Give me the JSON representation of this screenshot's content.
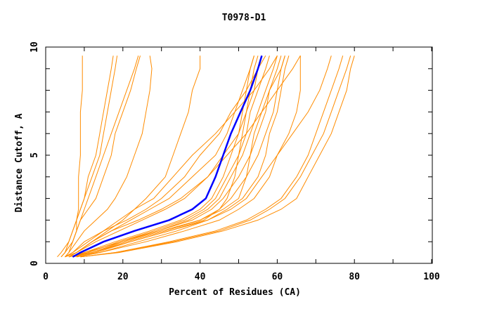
{
  "chart_data": {
    "type": "line",
    "title": "T0978-D1",
    "xlabel": "Percent of Residues (CA)",
    "ylabel": "Distance Cutoff, A",
    "xlim": [
      0,
      100
    ],
    "ylim": [
      0,
      10
    ],
    "xticks": [
      "0",
      "20",
      "40",
      "60",
      "80",
      "100"
    ],
    "yticks": [
      "0",
      "5",
      "10"
    ],
    "grid": false,
    "colors": {
      "models": "#ff8c00",
      "highlight": "#0000ff",
      "axes": "#000000"
    },
    "y_cutoffs": [
      0.3,
      0.5,
      1,
      1.5,
      2,
      2.5,
      3,
      4,
      5,
      6,
      7,
      8,
      9,
      9.6
    ],
    "highlight_series": {
      "x": [
        7,
        9,
        15,
        23,
        32,
        38,
        41.5,
        44,
        46,
        48,
        50.5,
        53,
        55,
        56
      ]
    },
    "series": [
      {
        "x": [
          4,
          5,
          7,
          8,
          8,
          8.5,
          8.5,
          8.5,
          9,
          9,
          9,
          9.5,
          9.5,
          9.5
        ]
      },
      {
        "x": [
          3,
          4,
          6,
          7,
          8,
          9,
          10,
          11,
          13,
          14,
          15,
          16,
          17,
          17.5
        ]
      },
      {
        "x": [
          4,
          5,
          6,
          7,
          8,
          9,
          10,
          12,
          14,
          15,
          16,
          17,
          18,
          18.5
        ]
      },
      {
        "x": [
          4,
          5,
          7,
          8,
          9,
          11,
          13,
          15,
          17,
          18,
          20,
          22,
          23.5,
          24.5
        ]
      },
      {
        "x": [
          5,
          6,
          7,
          8,
          9,
          10,
          11,
          13,
          15,
          17,
          19,
          21,
          23,
          24
        ]
      },
      {
        "x": [
          5,
          6,
          8,
          10,
          13,
          16,
          18,
          21,
          23,
          25,
          26,
          27,
          27.5,
          27
        ]
      },
      {
        "x": [
          6,
          8,
          12,
          16,
          20,
          23,
          26,
          31,
          33,
          35,
          37,
          38,
          40,
          40
        ]
      },
      {
        "x": [
          6,
          8,
          12,
          17,
          24,
          30,
          35,
          42,
          46,
          50,
          51,
          52,
          53,
          54
        ]
      },
      {
        "x": [
          6,
          10,
          18,
          27,
          35,
          40,
          43,
          46,
          48,
          50,
          52,
          54,
          55,
          57
        ]
      },
      {
        "x": [
          7,
          11,
          19,
          28,
          36,
          41,
          44,
          47,
          50,
          52,
          53,
          55,
          57,
          58
        ]
      },
      {
        "x": [
          7,
          12,
          20,
          29,
          37,
          42,
          45,
          48,
          51,
          53,
          55,
          57,
          59,
          60
        ]
      },
      {
        "x": [
          6,
          11,
          19,
          29,
          38,
          43,
          46,
          50,
          53,
          55,
          57,
          58,
          60,
          61
        ]
      },
      {
        "x": [
          7,
          12,
          21,
          31,
          40,
          45,
          48,
          52,
          55,
          57,
          59,
          60,
          61,
          62
        ]
      },
      {
        "x": [
          8,
          14,
          24,
          34,
          42,
          47,
          51,
          55,
          57,
          58,
          60,
          61,
          62,
          63
        ]
      },
      {
        "x": [
          6,
          10,
          20,
          30,
          40,
          46,
          50,
          52,
          53,
          54,
          56,
          58,
          61,
          62
        ]
      },
      {
        "x": [
          8,
          14,
          26,
          36,
          45,
          50,
          54,
          58,
          60,
          63,
          65,
          66,
          66,
          66
        ]
      },
      {
        "x": [
          9,
          18,
          32,
          44,
          52,
          57,
          61,
          65,
          68,
          70,
          72,
          74,
          76,
          77
        ]
      },
      {
        "x": [
          9,
          18,
          33,
          45,
          53,
          58,
          62,
          66,
          69,
          72,
          74,
          76,
          78,
          79
        ]
      },
      {
        "x": [
          9,
          19,
          34,
          46,
          55,
          61,
          65,
          68,
          71,
          74,
          76,
          78,
          79,
          80
        ]
      },
      {
        "x": [
          5,
          7,
          10,
          15,
          21,
          26,
          30,
          36,
          40,
          45,
          48,
          52,
          55,
          56
        ]
      },
      {
        "x": [
          5,
          8,
          12,
          17,
          22,
          27,
          32,
          38,
          44,
          47,
          49,
          51,
          53,
          54
        ]
      },
      {
        "x": [
          5,
          7,
          11,
          15,
          19,
          23,
          28,
          33,
          38,
          44,
          49,
          54,
          58,
          60
        ]
      },
      {
        "x": [
          5,
          8,
          13,
          19,
          25,
          31,
          36,
          42,
          47,
          52,
          56,
          60,
          64,
          66
        ]
      },
      {
        "x": [
          7,
          12,
          22,
          32,
          42,
          48,
          52,
          56,
          60,
          64,
          68,
          71,
          73,
          74
        ]
      },
      {
        "x": [
          8,
          13,
          22,
          32,
          41,
          45,
          47,
          49,
          50,
          51,
          52,
          53,
          54,
          55
        ]
      }
    ]
  }
}
